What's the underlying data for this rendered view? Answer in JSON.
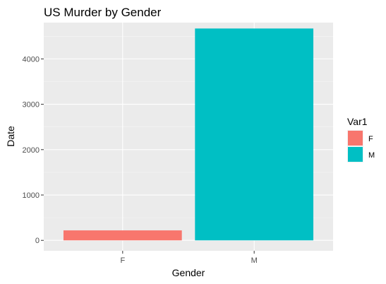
{
  "chart_data": {
    "type": "bar",
    "title": "US Murder by Gender",
    "xlabel": "Gender",
    "ylabel": "Date",
    "categories": [
      "F",
      "M"
    ],
    "values": [
      220,
      4670
    ],
    "colors": [
      "#F8766D",
      "#00BFC4"
    ],
    "ylim": [
      0,
      4800
    ],
    "yticks": [
      0,
      1000,
      2000,
      3000,
      4000
    ],
    "ytick_labels": [
      "0",
      "1000",
      "2000",
      "3000",
      "4000"
    ],
    "grid": true,
    "legend": {
      "title": "Var1",
      "placement": "right",
      "entries": [
        "F",
        "M"
      ]
    }
  }
}
